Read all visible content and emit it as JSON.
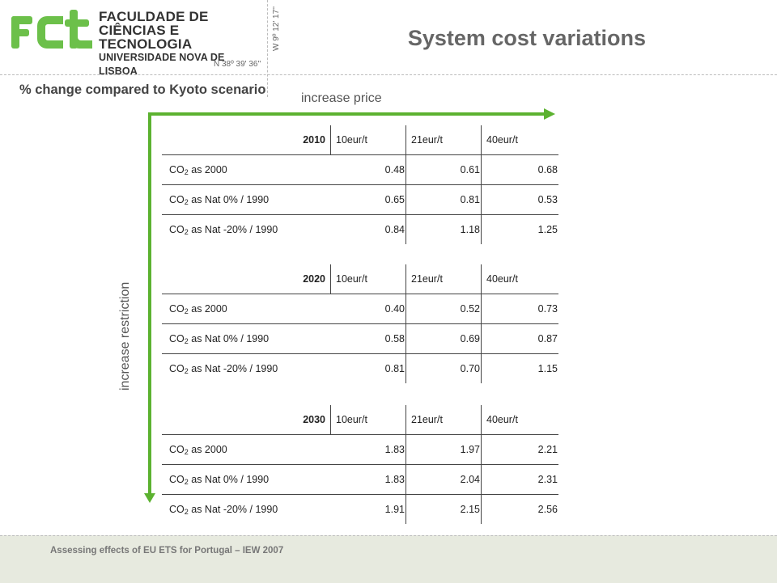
{
  "header": {
    "logo_fct": "FCT",
    "logo_line1": "FACULDADE DE",
    "logo_line2": "CIÊNCIAS E TECNOLOGIA",
    "logo_line3": "UNIVERSIDADE NOVA DE LISBOA",
    "coord_n": "N 38º 39' 36''",
    "coord_w": "W 9º 12' 17''",
    "title": "System cost variations"
  },
  "subtitle": "% change compared to Kyoto scenario",
  "arrows": {
    "x_label": "increase price",
    "y_label": "increase restriction",
    "color": "#5cb230"
  },
  "tables": [
    {
      "year": "2010",
      "columns": [
        "10eur/t",
        "21eur/t",
        "40eur/t"
      ],
      "rows": [
        {
          "label_prefix": "CO",
          "label_sub": "2",
          "label_suffix": " as 2000",
          "values": [
            "0.48",
            "0.61",
            "0.68"
          ]
        },
        {
          "label_prefix": "CO",
          "label_sub": "2",
          "label_suffix": " as Nat 0% / 1990",
          "values": [
            "0.65",
            "0.81",
            "0.53"
          ]
        },
        {
          "label_prefix": "CO",
          "label_sub": "2",
          "label_suffix": " as Nat -20% / 1990",
          "values": [
            "0.84",
            "1.18",
            "1.25"
          ]
        }
      ]
    },
    {
      "year": "2020",
      "columns": [
        "10eur/t",
        "21eur/t",
        "40eur/t"
      ],
      "rows": [
        {
          "label_prefix": "CO",
          "label_sub": "2",
          "label_suffix": " as 2000",
          "values": [
            "0.40",
            "0.52",
            "0.73"
          ]
        },
        {
          "label_prefix": "CO",
          "label_sub": "2",
          "label_suffix": " as Nat 0% / 1990",
          "values": [
            "0.58",
            "0.69",
            "0.87"
          ]
        },
        {
          "label_prefix": "CO",
          "label_sub": "2",
          "label_suffix": " as Nat -20% / 1990",
          "values": [
            "0.81",
            "0.70",
            "1.15"
          ]
        }
      ]
    },
    {
      "year": "2030",
      "columns": [
        "10eur/t",
        "21eur/t",
        "40eur/t"
      ],
      "rows": [
        {
          "label_prefix": "CO",
          "label_sub": "2",
          "label_suffix": " as 2000",
          "values": [
            "1.83",
            "1.97",
            "2.21"
          ]
        },
        {
          "label_prefix": "CO",
          "label_sub": "2",
          "label_suffix": " as Nat 0% / 1990",
          "values": [
            "1.83",
            "2.04",
            "2.31"
          ]
        },
        {
          "label_prefix": "CO",
          "label_sub": "2",
          "label_suffix": " as Nat -20% / 1990",
          "values": [
            "1.91",
            "2.15",
            "2.56"
          ]
        }
      ]
    }
  ],
  "footer": {
    "text": "Assessing effects of EU ETS for Portugal – IEW 2007",
    "background": "#e7eadf"
  }
}
